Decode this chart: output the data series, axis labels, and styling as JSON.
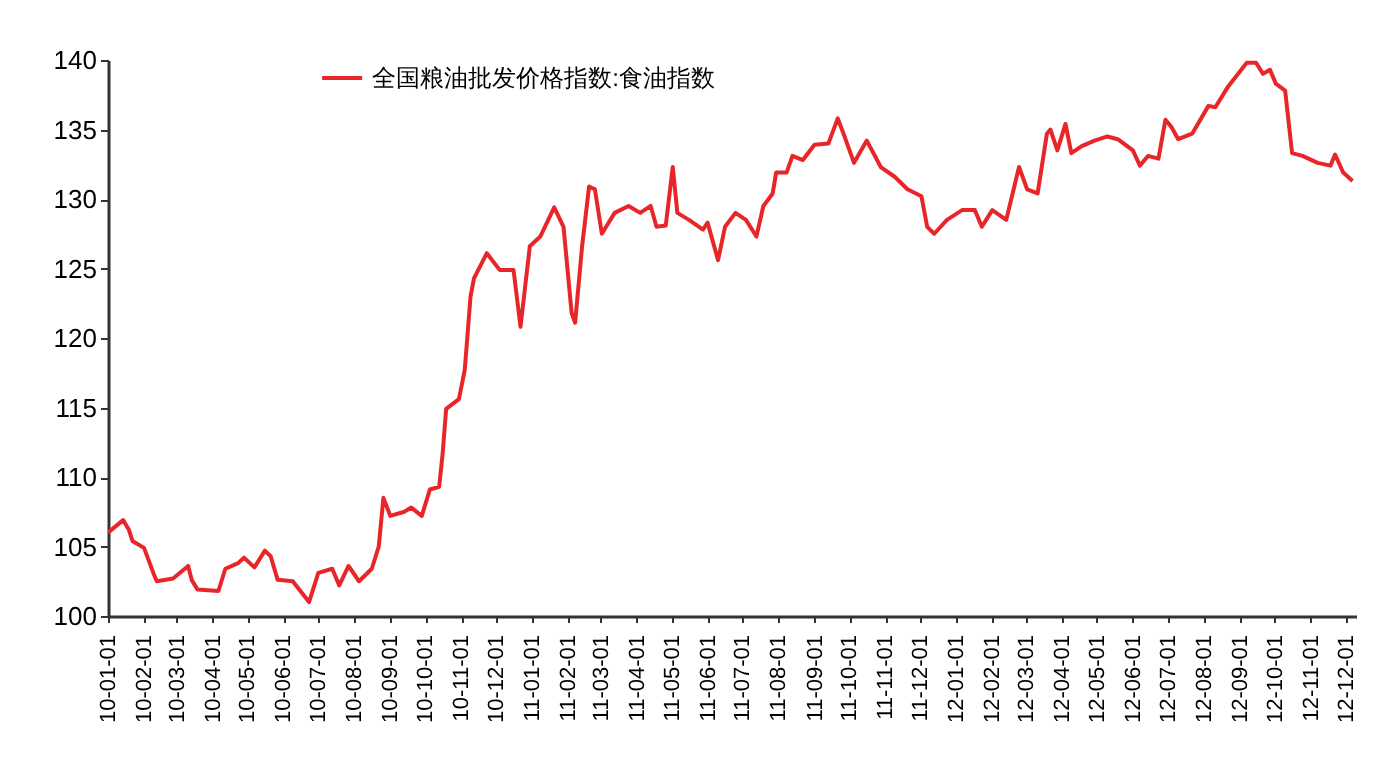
{
  "chart_data": {
    "type": "line",
    "x": [
      "2010-01-01",
      "2010-01-14",
      "2010-01-19",
      "2010-01-22",
      "2010-02-01",
      "2010-02-09",
      "2010-02-12",
      "2010-02-26",
      "2010-03-11",
      "2010-03-14",
      "2010-03-19",
      "2010-04-06",
      "2010-04-12",
      "2010-04-23",
      "2010-04-28",
      "2010-05-07",
      "2010-05-16",
      "2010-05-21",
      "2010-05-27",
      "2010-06-09",
      "2010-06-23",
      "2010-07-01",
      "2010-07-13",
      "2010-07-19",
      "2010-07-27",
      "2010-08-05",
      "2010-08-16",
      "2010-08-22",
      "2010-08-26",
      "2010-09-01",
      "2010-09-13",
      "2010-09-19",
      "2010-09-28",
      "2010-10-05",
      "2010-10-13",
      "2010-10-16",
      "2010-10-19",
      "2010-10-30",
      "2010-11-04",
      "2010-11-09",
      "2010-11-12",
      "2010-11-23",
      "2010-12-04",
      "2010-12-16",
      "2010-12-22",
      "2010-12-30",
      "2011-01-08",
      "2011-01-20",
      "2011-01-28",
      "2011-02-04",
      "2011-02-07",
      "2011-02-13",
      "2011-02-19",
      "2011-02-24",
      "2011-03-02",
      "2011-03-13",
      "2011-03-25",
      "2011-04-04",
      "2011-04-13",
      "2011-04-18",
      "2011-04-26",
      "2011-05-02",
      "2011-05-06",
      "2011-05-16",
      "2011-05-28",
      "2011-06-01",
      "2011-06-10",
      "2011-06-16",
      "2011-06-25",
      "2011-07-04",
      "2011-07-13",
      "2011-07-19",
      "2011-07-27",
      "2011-07-30",
      "2011-08-08",
      "2011-08-13",
      "2011-08-22",
      "2011-09-01",
      "2011-09-13",
      "2011-09-21",
      "2011-09-26",
      "2011-10-05",
      "2011-10-16",
      "2011-10-28",
      "2011-11-09",
      "2011-11-20",
      "2011-12-02",
      "2011-12-07",
      "2011-12-13",
      "2011-12-24",
      "2012-01-06",
      "2012-01-17",
      "2012-01-23",
      "2012-02-01",
      "2012-02-13",
      "2012-02-24",
      "2012-03-02",
      "2012-03-11",
      "2012-03-19",
      "2012-03-22",
      "2012-03-28",
      "2012-04-04",
      "2012-04-09",
      "2012-04-18",
      "2012-04-29",
      "2012-05-10",
      "2012-05-19",
      "2012-06-01",
      "2012-06-07",
      "2012-06-14",
      "2012-06-23",
      "2012-06-29",
      "2012-07-04",
      "2012-07-10",
      "2012-07-22",
      "2012-08-05",
      "2012-08-11",
      "2012-08-22",
      "2012-09-07",
      "2012-09-15",
      "2012-09-21",
      "2012-09-27",
      "2012-10-02",
      "2012-10-10",
      "2012-10-16",
      "2012-10-25",
      "2012-11-07",
      "2012-11-18",
      "2012-11-22",
      "2012-11-29",
      "2012-12-07"
    ],
    "series": [
      {
        "name": "全国粮油批发价格指数:食油指数",
        "color": "#e8262a",
        "values": [
          106.0,
          106.9,
          106.2,
          105.4,
          104.9,
          103.1,
          102.5,
          102.7,
          103.6,
          102.6,
          101.9,
          101.8,
          103.4,
          103.8,
          104.2,
          103.5,
          104.7,
          104.3,
          102.6,
          102.5,
          101.0,
          103.1,
          103.4,
          102.2,
          103.6,
          102.5,
          103.4,
          105.0,
          108.5,
          107.2,
          107.5,
          107.8,
          107.2,
          109.1,
          109.3,
          111.7,
          114.9,
          115.6,
          117.7,
          123.0,
          124.3,
          126.1,
          124.9,
          124.9,
          120.8,
          126.6,
          127.3,
          129.4,
          128.0,
          121.8,
          121.1,
          126.6,
          130.9,
          130.7,
          127.5,
          129.0,
          129.5,
          129.0,
          129.5,
          128.0,
          128.1,
          132.3,
          129.0,
          128.5,
          127.8,
          128.3,
          125.6,
          128.0,
          129.0,
          128.5,
          127.3,
          129.5,
          130.4,
          131.9,
          131.9,
          133.1,
          132.8,
          133.9,
          134.0,
          135.8,
          134.7,
          132.6,
          134.2,
          132.3,
          131.6,
          130.7,
          130.2,
          128.0,
          127.5,
          128.5,
          129.2,
          129.2,
          128.0,
          129.2,
          128.5,
          132.3,
          130.7,
          130.4,
          134.7,
          135.0,
          133.5,
          135.4,
          133.3,
          133.8,
          134.2,
          134.5,
          134.3,
          133.5,
          132.4,
          133.1,
          132.9,
          135.7,
          135.2,
          134.3,
          134.7,
          136.7,
          136.6,
          138.1,
          139.8,
          139.8,
          139.0,
          139.3,
          138.3,
          137.8,
          133.3,
          133.1,
          132.6,
          132.4,
          133.2,
          131.9,
          131.3
        ]
      }
    ],
    "xlim": [
      "2010-01-01",
      "2012-12-10"
    ],
    "xticks": [
      {
        "value": "2010-01-01",
        "label": "10-01-01"
      },
      {
        "value": "2010-02-01",
        "label": "10-02-01"
      },
      {
        "value": "2010-03-01",
        "label": "10-03-01"
      },
      {
        "value": "2010-04-01",
        "label": "10-04-01"
      },
      {
        "value": "2010-05-01",
        "label": "10-05-01"
      },
      {
        "value": "2010-06-01",
        "label": "10-06-01"
      },
      {
        "value": "2010-07-01",
        "label": "10-07-01"
      },
      {
        "value": "2010-08-01",
        "label": "10-08-01"
      },
      {
        "value": "2010-09-01",
        "label": "10-09-01"
      },
      {
        "value": "2010-10-01",
        "label": "10-10-01"
      },
      {
        "value": "2010-11-01",
        "label": "10-11-01"
      },
      {
        "value": "2010-12-01",
        "label": "10-12-01"
      },
      {
        "value": "2011-01-01",
        "label": "11-01-01"
      },
      {
        "value": "2011-02-01",
        "label": "11-02-01"
      },
      {
        "value": "2011-03-01",
        "label": "11-03-01"
      },
      {
        "value": "2011-04-01",
        "label": "11-04-01"
      },
      {
        "value": "2011-05-01",
        "label": "11-05-01"
      },
      {
        "value": "2011-06-01",
        "label": "11-06-01"
      },
      {
        "value": "2011-07-01",
        "label": "11-07-01"
      },
      {
        "value": "2011-08-01",
        "label": "11-08-01"
      },
      {
        "value": "2011-09-01",
        "label": "11-09-01"
      },
      {
        "value": "2011-10-01",
        "label": "11-10-01"
      },
      {
        "value": "2011-11-01",
        "label": "11-11-01"
      },
      {
        "value": "2011-12-01",
        "label": "11-12-01"
      },
      {
        "value": "2012-01-01",
        "label": "12-01-01"
      },
      {
        "value": "2012-02-01",
        "label": "12-02-01"
      },
      {
        "value": "2012-03-01",
        "label": "12-03-01"
      },
      {
        "value": "2012-04-01",
        "label": "12-04-01"
      },
      {
        "value": "2012-05-01",
        "label": "12-05-01"
      },
      {
        "value": "2012-06-01",
        "label": "12-06-01"
      },
      {
        "value": "2012-07-01",
        "label": "12-07-01"
      },
      {
        "value": "2012-08-01",
        "label": "12-08-01"
      },
      {
        "value": "2012-09-01",
        "label": "12-09-01"
      },
      {
        "value": "2012-10-01",
        "label": "12-10-01"
      },
      {
        "value": "2012-11-01",
        "label": "12-11-01"
      },
      {
        "value": "2012-12-01",
        "label": "12-12-01"
      }
    ],
    "ylim": [
      100,
      140
    ],
    "yticks": [
      100,
      105,
      110,
      115,
      120,
      125,
      130,
      135,
      140
    ],
    "grid": false,
    "legend": "top",
    "line_style": "solid"
  }
}
